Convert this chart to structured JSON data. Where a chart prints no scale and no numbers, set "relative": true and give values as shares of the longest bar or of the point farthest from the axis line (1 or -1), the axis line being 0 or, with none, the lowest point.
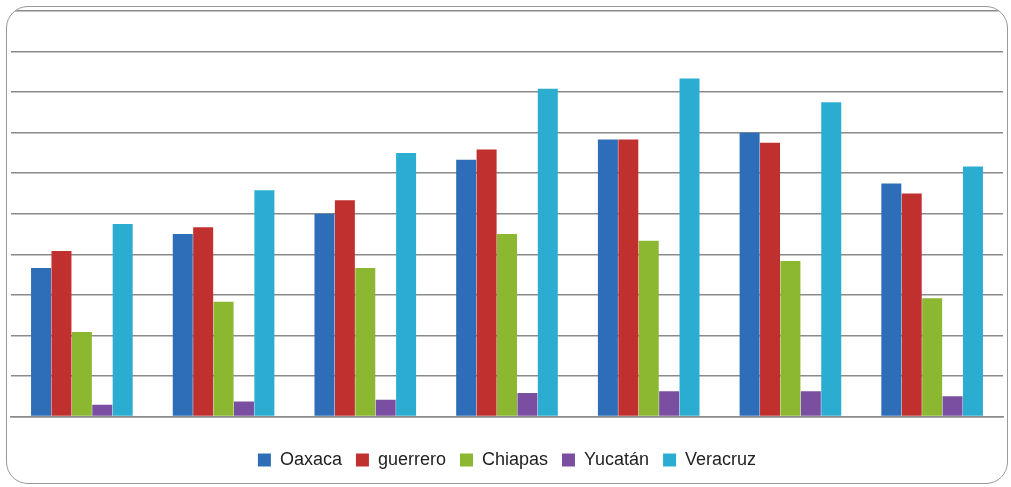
{
  "chart_data": {
    "type": "bar",
    "relative": true,
    "grid": "y",
    "legend": "bottom",
    "categories": [
      null,
      null,
      null,
      null,
      null,
      null,
      null
    ],
    "series": [
      {
        "name": "Oaxaca",
        "color": "#2e6db8",
        "values": [
          0.44,
          0.54,
          0.6,
          0.76,
          0.82,
          0.84,
          0.69
        ]
      },
      {
        "name": "guerrero",
        "color": "#c0302f",
        "values": [
          0.49,
          0.56,
          0.64,
          0.79,
          0.82,
          0.81,
          0.66
        ]
      },
      {
        "name": "Chiapas",
        "color": "#8bb830",
        "values": [
          0.25,
          0.34,
          0.44,
          0.54,
          0.52,
          0.46,
          0.35
        ]
      },
      {
        "name": "Yucatán",
        "color": "#7a4ea0",
        "values": [
          0.035,
          0.045,
          0.05,
          0.07,
          0.075,
          0.075,
          0.06
        ]
      },
      {
        "name": "Veracruz",
        "color": "#2aadd0",
        "values": [
          0.57,
          0.67,
          0.78,
          0.97,
          1,
          0.93,
          0.74
        ]
      }
    ]
  }
}
